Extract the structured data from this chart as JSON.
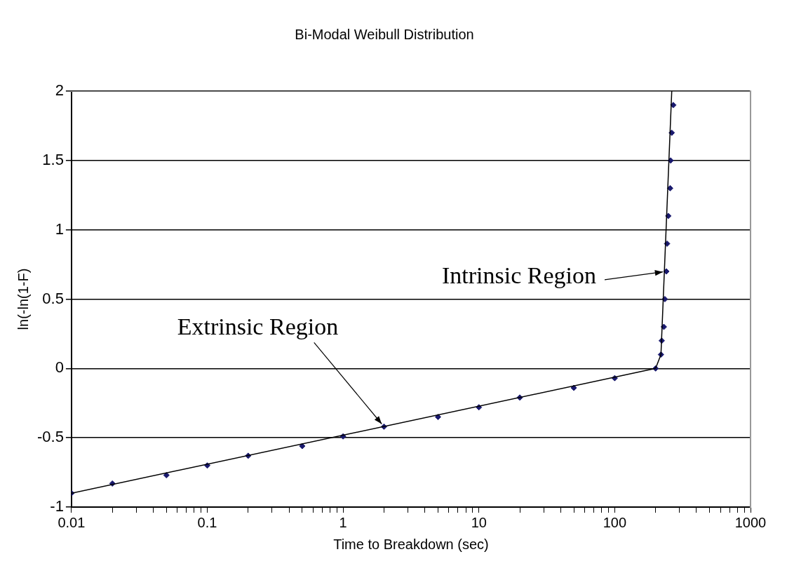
{
  "chart_data": {
    "type": "scatter",
    "title": "Bi-Modal Weibull Distribution",
    "xlabel": "Time to Breakdown (sec)",
    "ylabel": "ln(-ln(1-F)",
    "log": "x",
    "grid": "y",
    "xlim": [
      0.01,
      1000
    ],
    "ylim": [
      -1,
      2
    ],
    "xticks": [
      0.01,
      {
        "value": 0.02,
        "label": null
      },
      {
        "value": 0.03,
        "label": null
      },
      {
        "value": 0.04,
        "label": null
      },
      {
        "value": 0.05,
        "label": null
      },
      {
        "value": 0.06,
        "label": null
      },
      {
        "value": 0.07,
        "label": null
      },
      {
        "value": 0.08,
        "label": null
      },
      {
        "value": 0.09,
        "label": null
      },
      0.1,
      {
        "value": 0.2,
        "label": null
      },
      {
        "value": 0.3,
        "label": null
      },
      {
        "value": 0.4,
        "label": null
      },
      {
        "value": 0.5,
        "label": null
      },
      {
        "value": 0.6,
        "label": null
      },
      {
        "value": 0.7,
        "label": null
      },
      {
        "value": 0.8,
        "label": null
      },
      {
        "value": 0.9,
        "label": null
      },
      1,
      {
        "value": 2,
        "label": null
      },
      {
        "value": 3,
        "label": null
      },
      {
        "value": 4,
        "label": null
      },
      {
        "value": 5,
        "label": null
      },
      {
        "value": 6,
        "label": null
      },
      {
        "value": 7,
        "label": null
      },
      {
        "value": 8,
        "label": null
      },
      {
        "value": 9,
        "label": null
      },
      10,
      {
        "value": 20,
        "label": null
      },
      {
        "value": 30,
        "label": null
      },
      {
        "value": 40,
        "label": null
      },
      {
        "value": 50,
        "label": null
      },
      {
        "value": 60,
        "label": null
      },
      {
        "value": 70,
        "label": null
      },
      {
        "value": 80,
        "label": null
      },
      {
        "value": 90,
        "label": null
      },
      100,
      {
        "value": 200,
        "label": null
      },
      {
        "value": 300,
        "label": null
      },
      {
        "value": 400,
        "label": null
      },
      {
        "value": 500,
        "label": null
      },
      {
        "value": 600,
        "label": null
      },
      {
        "value": 700,
        "label": null
      },
      {
        "value": 800,
        "label": null
      },
      {
        "value": 900,
        "label": null
      },
      1000
    ],
    "yticks": [
      -1,
      -0.5,
      0,
      0.5,
      1,
      1.5,
      2
    ],
    "series": [
      {
        "type": "line",
        "marker": "none",
        "color": "#000000",
        "x": [
          0.01,
          200
        ],
        "values": [
          -0.9,
          0
        ]
      },
      {
        "type": "line",
        "marker": "none",
        "color": "#000000",
        "x": [
          200,
          219,
          263
        ],
        "values": [
          0,
          0.1,
          2
        ]
      },
      {
        "marker": "diamond",
        "color": "#1a1a6e",
        "x": [
          0.01,
          0.02,
          0.05,
          0.1,
          0.2,
          0.5,
          1,
          2,
          5,
          10,
          20,
          50,
          100,
          200,
          219,
          222,
          230,
          234,
          240,
          243,
          248,
          256,
          258,
          263,
          270
        ],
        "values": [
          -0.9,
          -0.83,
          -0.77,
          -0.7,
          -0.63,
          -0.56,
          -0.49,
          -0.42,
          -0.35,
          -0.28,
          -0.21,
          -0.14,
          -0.07,
          0,
          0.1,
          0.2,
          0.3,
          0.5,
          0.7,
          0.9,
          1.1,
          1.3,
          1.5,
          1.7,
          1.9
        ]
      }
    ],
    "annotations": [
      {
        "text": "Extrinsic Region",
        "x": 2,
        "y": -0.42
      },
      {
        "text": "Intrinsic Region",
        "x": 240,
        "y": 0.7
      }
    ]
  }
}
